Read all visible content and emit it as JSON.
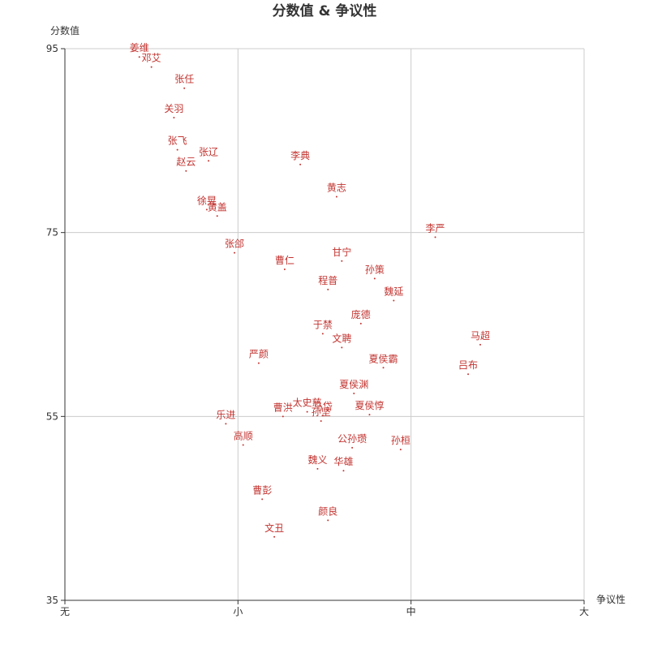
{
  "chart_data": {
    "type": "scatter",
    "title": "分数值 & 争议性",
    "xlabel": "争议性",
    "ylabel": "分数值",
    "x_categories": [
      "无",
      "小",
      "中",
      "大"
    ],
    "xlim": [
      0,
      3
    ],
    "ylim": [
      35,
      95
    ],
    "yticks": [
      35,
      55,
      75,
      95
    ],
    "grid": true,
    "colors": {
      "point": "#c23531",
      "axis": "#333333",
      "grid": "#cccccc"
    },
    "points": [
      {
        "name": "姜维",
        "x": 0.43,
        "y": 94.1
      },
      {
        "name": "邓艾",
        "x": 0.5,
        "y": 93.0
      },
      {
        "name": "张任",
        "x": 0.69,
        "y": 90.7
      },
      {
        "name": "关羽",
        "x": 0.63,
        "y": 87.5
      },
      {
        "name": "张飞",
        "x": 0.65,
        "y": 84.0
      },
      {
        "name": "张辽",
        "x": 0.83,
        "y": 82.8
      },
      {
        "name": "赵云",
        "x": 0.7,
        "y": 81.7
      },
      {
        "name": "李典",
        "x": 1.36,
        "y": 82.4
      },
      {
        "name": "黄志",
        "x": 1.57,
        "y": 78.9
      },
      {
        "name": "徐晃",
        "x": 0.82,
        "y": 77.5
      },
      {
        "name": "黄盖",
        "x": 0.88,
        "y": 76.8
      },
      {
        "name": "李严",
        "x": 2.14,
        "y": 74.5
      },
      {
        "name": "张郃",
        "x": 0.98,
        "y": 72.8
      },
      {
        "name": "甘宁",
        "x": 1.6,
        "y": 71.9
      },
      {
        "name": "曹仁",
        "x": 1.27,
        "y": 71.0
      },
      {
        "name": "孙策",
        "x": 1.79,
        "y": 70.0
      },
      {
        "name": "程普",
        "x": 1.52,
        "y": 68.8
      },
      {
        "name": "魏延",
        "x": 1.9,
        "y": 67.6
      },
      {
        "name": "庞德",
        "x": 1.71,
        "y": 65.1
      },
      {
        "name": "于禁",
        "x": 1.49,
        "y": 64.0
      },
      {
        "name": "马超",
        "x": 2.4,
        "y": 62.8
      },
      {
        "name": "文聘",
        "x": 1.6,
        "y": 62.5
      },
      {
        "name": "严颜",
        "x": 1.12,
        "y": 60.8
      },
      {
        "name": "夏侯霸",
        "x": 1.84,
        "y": 60.3
      },
      {
        "name": "吕布",
        "x": 2.33,
        "y": 59.6
      },
      {
        "name": "夏侯渊",
        "x": 1.67,
        "y": 57.5
      },
      {
        "name": "太史慈",
        "x": 1.4,
        "y": 55.5
      },
      {
        "name": "马岱",
        "x": 1.49,
        "y": 55.1
      },
      {
        "name": "曹洪",
        "x": 1.26,
        "y": 55.0
      },
      {
        "name": "夏侯惇",
        "x": 1.76,
        "y": 55.2
      },
      {
        "name": "孙坚",
        "x": 1.48,
        "y": 54.5
      },
      {
        "name": "乐进",
        "x": 0.93,
        "y": 54.2
      },
      {
        "name": "高顺",
        "x": 1.03,
        "y": 51.9
      },
      {
        "name": "公孙瓒",
        "x": 1.66,
        "y": 51.6
      },
      {
        "name": "孙桓",
        "x": 1.94,
        "y": 51.4
      },
      {
        "name": "魏义",
        "x": 1.46,
        "y": 49.3
      },
      {
        "name": "华雄",
        "x": 1.61,
        "y": 49.1
      },
      {
        "name": "曹彭",
        "x": 1.14,
        "y": 46.0
      },
      {
        "name": "颜良",
        "x": 1.52,
        "y": 43.7
      },
      {
        "name": "文丑",
        "x": 1.21,
        "y": 41.9
      }
    ]
  }
}
